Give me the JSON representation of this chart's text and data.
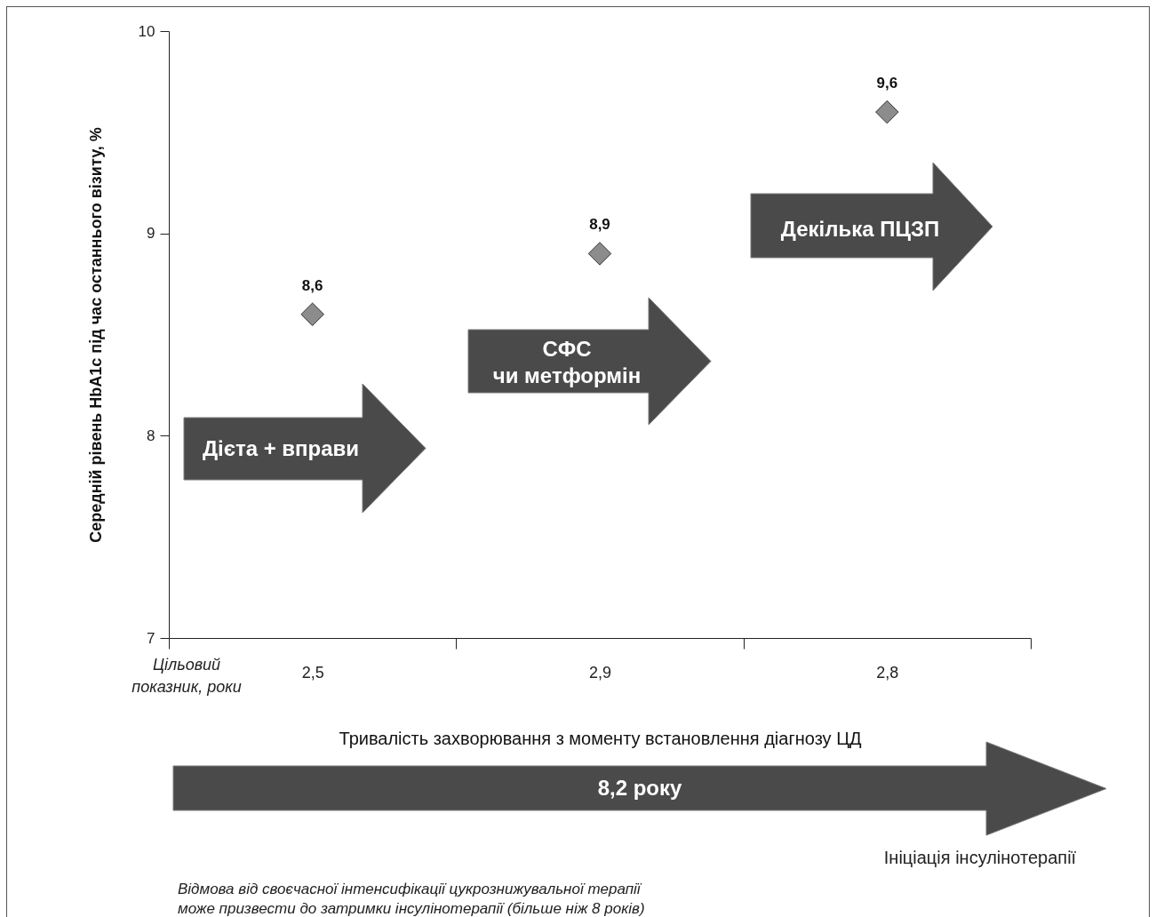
{
  "chart_data": {
    "type": "scatter",
    "ylabel": "Середній рівень HbA1c під час останнього візиту, %",
    "xlabel": "Тривалість захворювання з моменту встановлення діагнозу ЦД",
    "categories": [
      "2,5",
      "2,9",
      "2,8"
    ],
    "values": [
      8.6,
      8.9,
      9.6
    ],
    "color": "#8c8c8c",
    "marker": "diamond",
    "value_labels": [
      "8,6",
      "8,9",
      "9,6"
    ],
    "ylim": [
      7,
      10
    ],
    "yticks": [
      7,
      8,
      9,
      10
    ],
    "annotations": [
      "Дієта + вправи",
      "СФС\nчи метформін",
      "Декілька ПЦЗП",
      "Цільовий\nпоказник, роки",
      "8,2 року",
      "Ініціація інсулінотерапії",
      "Відмова від своєчасної інтенсифікації цукрознижувальної терапії\nможе призвести до затримки інсулінотерапії (більше ніж 8 років)"
    ]
  }
}
